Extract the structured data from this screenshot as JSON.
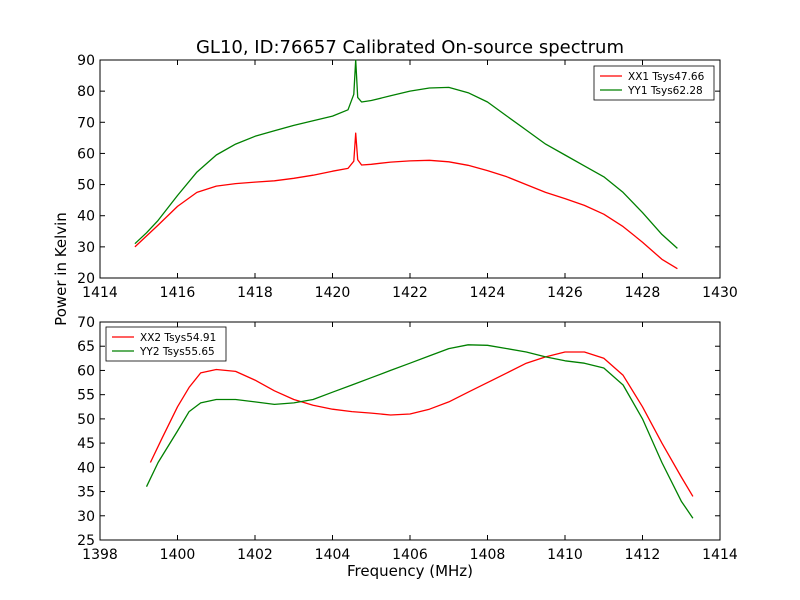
{
  "title": "GL10, ID:76657 Calibrated On-source spectrum",
  "chart_data": [
    {
      "type": "line",
      "ylabel": "Power in Kelvin",
      "xlabel": "",
      "xlim": [
        1414,
        1430
      ],
      "ylim": [
        20,
        90
      ],
      "xticks": [
        "1414",
        "1416",
        "1418",
        "1420",
        "1422",
        "1424",
        "1426",
        "1428",
        "1430"
      ],
      "yticks": [
        "20",
        "30",
        "40",
        "50",
        "60",
        "70",
        "80",
        "90"
      ],
      "legend_position": "top-right",
      "series": [
        {
          "name": "XX1 Tsys47.66",
          "color": "#ff0000",
          "x": [
            1414.9,
            1415.2,
            1415.5,
            1416.0,
            1416.5,
            1417.0,
            1417.5,
            1418.0,
            1418.5,
            1419.0,
            1419.5,
            1420.0,
            1420.4,
            1420.55,
            1420.6,
            1420.65,
            1420.75,
            1421.0,
            1421.5,
            1422.0,
            1422.5,
            1423.0,
            1423.5,
            1424.0,
            1424.5,
            1425.0,
            1425.5,
            1426.0,
            1426.5,
            1427.0,
            1427.5,
            1428.0,
            1428.5,
            1428.9
          ],
          "y": [
            30,
            33.5,
            37,
            43,
            47.5,
            49.5,
            50.3,
            50.8,
            51.2,
            52,
            53,
            54.3,
            55.2,
            57.5,
            66.5,
            58,
            56.3,
            56.5,
            57.2,
            57.6,
            57.8,
            57.3,
            56.2,
            54.5,
            52.5,
            50,
            47.5,
            45.5,
            43.3,
            40.5,
            36.5,
            31.5,
            26,
            23
          ]
        },
        {
          "name": "YY1 Tsys62.28",
          "color": "#008000",
          "x": [
            1414.9,
            1415.2,
            1415.5,
            1416.0,
            1416.5,
            1417.0,
            1417.5,
            1418.0,
            1418.5,
            1419.0,
            1419.5,
            1420.0,
            1420.4,
            1420.55,
            1420.6,
            1420.65,
            1420.75,
            1421.0,
            1421.5,
            1422.0,
            1422.5,
            1423.0,
            1423.5,
            1424.0,
            1424.5,
            1425.0,
            1425.5,
            1426.0,
            1426.5,
            1427.0,
            1427.5,
            1428.0,
            1428.5,
            1428.9
          ],
          "y": [
            31,
            34.5,
            38.5,
            46.5,
            54,
            59.5,
            63,
            65.5,
            67.3,
            69,
            70.5,
            72,
            74,
            79,
            90,
            78,
            76.5,
            77,
            78.5,
            80,
            81,
            81.2,
            79.5,
            76.5,
            72,
            67.5,
            63,
            59.5,
            56,
            52.5,
            47.5,
            41,
            34,
            29.5
          ]
        }
      ]
    },
    {
      "type": "line",
      "ylabel": "",
      "xlabel": "Frequency (MHz)",
      "xlim": [
        1398,
        1414
      ],
      "ylim": [
        25,
        70
      ],
      "xticks": [
        "1398",
        "1400",
        "1402",
        "1404",
        "1406",
        "1408",
        "1410",
        "1412",
        "1414"
      ],
      "yticks": [
        "25",
        "30",
        "35",
        "40",
        "45",
        "50",
        "55",
        "60",
        "65",
        "70"
      ],
      "legend_position": "top-left",
      "series": [
        {
          "name": "XX2 Tsys54.91",
          "color": "#ff0000",
          "x": [
            1399.3,
            1399.6,
            1400.0,
            1400.3,
            1400.6,
            1401.0,
            1401.5,
            1402.0,
            1402.5,
            1403.0,
            1403.5,
            1404.0,
            1404.5,
            1405.0,
            1405.5,
            1406.0,
            1406.5,
            1407.0,
            1407.5,
            1408.0,
            1408.5,
            1409.0,
            1409.5,
            1410.0,
            1410.5,
            1411.0,
            1411.5,
            1412.0,
            1412.5,
            1413.0,
            1413.3
          ],
          "y": [
            41,
            46,
            52.5,
            56.5,
            59.5,
            60.2,
            59.8,
            58,
            55.8,
            54,
            52.8,
            52,
            51.5,
            51.2,
            50.8,
            51,
            52,
            53.5,
            55.5,
            57.5,
            59.5,
            61.5,
            62.8,
            63.8,
            63.8,
            62.5,
            59,
            52.5,
            45,
            38,
            34
          ]
        },
        {
          "name": "YY2 Tsys55.65",
          "color": "#008000",
          "x": [
            1399.2,
            1399.5,
            1400.0,
            1400.3,
            1400.6,
            1401.0,
            1401.5,
            1402.0,
            1402.5,
            1403.0,
            1403.5,
            1404.0,
            1404.5,
            1405.0,
            1405.5,
            1406.0,
            1406.5,
            1407.0,
            1407.5,
            1408.0,
            1408.5,
            1409.0,
            1409.5,
            1410.0,
            1410.5,
            1411.0,
            1411.5,
            1412.0,
            1412.5,
            1413.0,
            1413.3
          ],
          "y": [
            36,
            41,
            47.5,
            51.5,
            53.3,
            54,
            54,
            53.5,
            53,
            53.3,
            54,
            55.5,
            57,
            58.5,
            60,
            61.5,
            63,
            64.5,
            65.3,
            65.2,
            64.5,
            63.8,
            62.8,
            62,
            61.5,
            60.5,
            57,
            50,
            41,
            33,
            29.5
          ]
        }
      ]
    }
  ]
}
